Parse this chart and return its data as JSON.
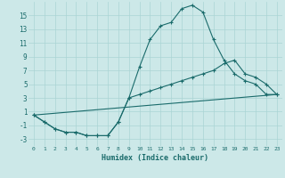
{
  "xlabel": "Humidex (Indice chaleur)",
  "bg_color": "#cce8e8",
  "grid_color": "#aad4d4",
  "line_color": "#1a6b6b",
  "line1_x": [
    0,
    1,
    2,
    3,
    4,
    5,
    6,
    7,
    8,
    9,
    10,
    11,
    12,
    13,
    14,
    15,
    16,
    17,
    18,
    19,
    20,
    21,
    22,
    23
  ],
  "line1_y": [
    0.5,
    -0.5,
    -1.5,
    -2.0,
    -2.0,
    -2.5,
    -2.5,
    -2.5,
    -0.5,
    3.0,
    7.5,
    11.5,
    13.5,
    14.0,
    16.0,
    16.5,
    15.5,
    11.5,
    8.5,
    6.5,
    5.5,
    5.0,
    3.5,
    3.5
  ],
  "line2_x": [
    0,
    1,
    2,
    3,
    4,
    5,
    6,
    7,
    8,
    9,
    10,
    11,
    12,
    13,
    14,
    15,
    16,
    17,
    18,
    19,
    20,
    21,
    22,
    23
  ],
  "line2_y": [
    0.5,
    -0.5,
    -1.5,
    -2.0,
    -2.0,
    -2.5,
    -2.5,
    -2.5,
    -0.5,
    3.0,
    3.5,
    4.0,
    4.5,
    5.0,
    5.5,
    6.0,
    6.5,
    7.0,
    8.0,
    8.5,
    6.5,
    6.0,
    5.0,
    3.5
  ],
  "line3_x": [
    0,
    23
  ],
  "line3_y": [
    0.5,
    3.5
  ],
  "yticks": [
    -3,
    -1,
    1,
    3,
    5,
    7,
    9,
    11,
    13,
    15
  ],
  "xticks": [
    0,
    1,
    2,
    3,
    4,
    5,
    6,
    7,
    8,
    9,
    10,
    11,
    12,
    13,
    14,
    15,
    16,
    17,
    18,
    19,
    20,
    21,
    22,
    23
  ],
  "ylim": [
    -4,
    17
  ],
  "xlim": [
    -0.5,
    23.5
  ]
}
